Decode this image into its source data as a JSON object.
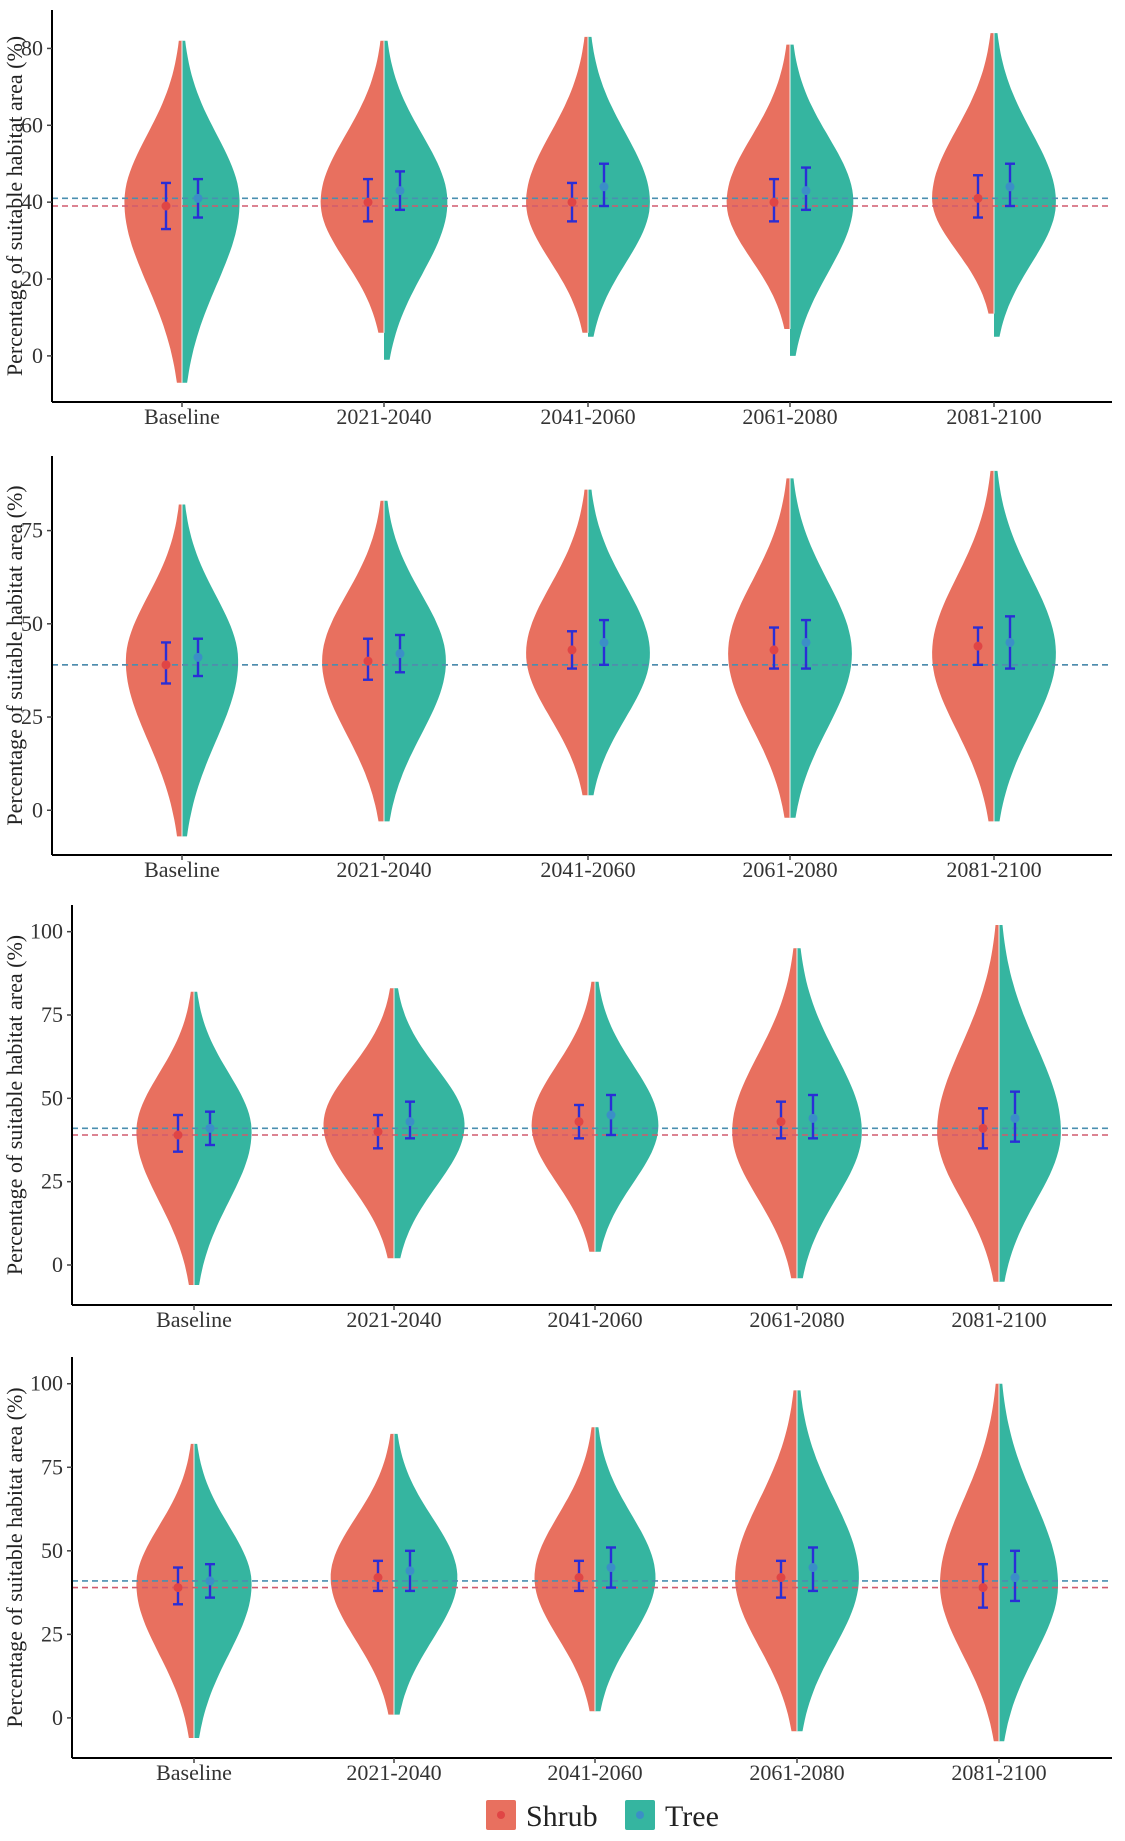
{
  "legend": {
    "items": [
      {
        "label": "Shrub",
        "color": "#E8705F",
        "dot": "#E04545"
      },
      {
        "label": "Tree",
        "color": "#35B5A0",
        "dot": "#3B8FC6"
      }
    ]
  },
  "colors": {
    "shrub_ref_line": "#D05A6E",
    "tree_ref_line": "#4A8FB0",
    "errorbar": "#2A2ED6"
  },
  "chart_data": [
    {
      "type": "violin",
      "split": true,
      "categories": [
        "Baseline",
        "2021-2040",
        "2041-2060",
        "2061-2080",
        "2081-2100"
      ],
      "ylabel": "Percentage of suitable habitat area (%)",
      "ylim": [
        -12,
        90
      ],
      "yticks": [
        0,
        20,
        40,
        60,
        80
      ],
      "reference_lines": {
        "Shrub": 39,
        "Tree": 41
      },
      "series": [
        {
          "name": "Shrub",
          "mean": [
            39,
            40,
            40,
            40,
            41
          ],
          "lower": [
            33,
            35,
            35,
            35,
            36
          ],
          "upper": [
            45,
            46,
            45,
            46,
            47
          ],
          "min": [
            -7,
            6,
            6,
            7,
            11
          ],
          "max": [
            82,
            82,
            83,
            81,
            84
          ],
          "peak": [
            40,
            40,
            40,
            40,
            41
          ],
          "width": [
            0.8,
            0.88,
            0.86,
            0.88,
            0.86
          ]
        },
        {
          "name": "Tree",
          "mean": [
            41,
            43,
            44,
            43,
            44
          ],
          "lower": [
            36,
            38,
            39,
            38,
            39
          ],
          "upper": [
            46,
            48,
            50,
            49,
            50
          ],
          "min": [
            -7,
            -1,
            5,
            0,
            5
          ],
          "max": [
            82,
            82,
            83,
            81,
            84
          ],
          "peak": [
            40,
            40,
            40,
            40,
            40
          ],
          "width": [
            0.8,
            0.88,
            0.86,
            0.88,
            0.86
          ]
        }
      ]
    },
    {
      "type": "violin",
      "split": true,
      "categories": [
        "Baseline",
        "2021-2040",
        "2041-2060",
        "2061-2080",
        "2081-2100"
      ],
      "ylabel": "Percentage of suitable habitat area (%)",
      "ylim": [
        -12,
        95
      ],
      "yticks": [
        0,
        25,
        50,
        75
      ],
      "reference_lines": {
        "Shrub": 39,
        "Tree": 39
      },
      "series": [
        {
          "name": "Shrub",
          "mean": [
            39,
            40,
            43,
            43,
            44
          ],
          "lower": [
            34,
            35,
            38,
            38,
            39
          ],
          "upper": [
            45,
            46,
            48,
            49,
            49
          ],
          "min": [
            -7,
            -3,
            4,
            -2,
            -3
          ],
          "max": [
            82,
            83,
            86,
            89,
            91
          ],
          "peak": [
            40,
            40,
            42,
            42,
            42
          ],
          "width": [
            0.78,
            0.86,
            0.86,
            0.86,
            0.86
          ]
        },
        {
          "name": "Tree",
          "mean": [
            41,
            42,
            45,
            45,
            45
          ],
          "lower": [
            36,
            37,
            39,
            38,
            38
          ],
          "upper": [
            46,
            47,
            51,
            51,
            52
          ],
          "min": [
            -7,
            -3,
            4,
            -2,
            -3
          ],
          "max": [
            82,
            83,
            86,
            89,
            91
          ],
          "peak": [
            40,
            40,
            42,
            42,
            42
          ],
          "width": [
            0.78,
            0.86,
            0.86,
            0.86,
            0.86
          ]
        }
      ]
    },
    {
      "type": "violin",
      "split": true,
      "categories": [
        "Baseline",
        "2021-2040",
        "2041-2060",
        "2061-2080",
        "2081-2100"
      ],
      "ylabel": "Percentage of suitable habitat area (%)",
      "ylim": [
        -12,
        108
      ],
      "yticks": [
        0,
        25,
        50,
        75,
        100
      ],
      "reference_lines": {
        "Shrub": 39,
        "Tree": 41
      },
      "series": [
        {
          "name": "Shrub",
          "mean": [
            39,
            40,
            43,
            43,
            41
          ],
          "lower": [
            34,
            35,
            38,
            38,
            35
          ],
          "upper": [
            45,
            45,
            48,
            49,
            47
          ],
          "min": [
            -6,
            2,
            4,
            -4,
            -5
          ],
          "max": [
            82,
            83,
            85,
            95,
            102
          ],
          "peak": [
            40,
            42,
            42,
            40,
            40
          ],
          "width": [
            0.8,
            0.98,
            0.88,
            0.9,
            0.86
          ]
        },
        {
          "name": "Tree",
          "mean": [
            41,
            43,
            45,
            44,
            44
          ],
          "lower": [
            36,
            38,
            39,
            38,
            37
          ],
          "upper": [
            46,
            49,
            51,
            51,
            52
          ],
          "min": [
            -6,
            2,
            4,
            -4,
            -5
          ],
          "max": [
            82,
            83,
            85,
            95,
            102
          ],
          "peak": [
            40,
            42,
            42,
            40,
            40
          ],
          "width": [
            0.8,
            0.98,
            0.88,
            0.9,
            0.86
          ]
        }
      ]
    },
    {
      "type": "violin",
      "split": true,
      "categories": [
        "Baseline",
        "2021-2040",
        "2041-2060",
        "2061-2080",
        "2081-2100"
      ],
      "ylabel": "Percentage of suitable habitat area (%)",
      "ylim": [
        -12,
        108
      ],
      "yticks": [
        0,
        25,
        50,
        75,
        100
      ],
      "reference_lines": {
        "Shrub": 39,
        "Tree": 41
      },
      "series": [
        {
          "name": "Shrub",
          "mean": [
            39,
            42,
            42,
            42,
            39
          ],
          "lower": [
            34,
            38,
            38,
            36,
            33
          ],
          "upper": [
            45,
            47,
            47,
            47,
            46
          ],
          "min": [
            -6,
            1,
            2,
            -4,
            -7
          ],
          "max": [
            82,
            85,
            87,
            98,
            100
          ],
          "peak": [
            40,
            42,
            42,
            42,
            40
          ],
          "width": [
            0.8,
            0.88,
            0.84,
            0.86,
            0.82
          ]
        },
        {
          "name": "Tree",
          "mean": [
            41,
            44,
            45,
            45,
            42
          ],
          "lower": [
            36,
            38,
            39,
            38,
            35
          ],
          "upper": [
            46,
            50,
            51,
            51,
            50
          ],
          "min": [
            -6,
            1,
            2,
            -4,
            -7
          ],
          "max": [
            82,
            85,
            87,
            98,
            100
          ],
          "peak": [
            40,
            42,
            42,
            42,
            40
          ],
          "width": [
            0.8,
            0.88,
            0.84,
            0.86,
            0.82
          ]
        }
      ]
    }
  ]
}
